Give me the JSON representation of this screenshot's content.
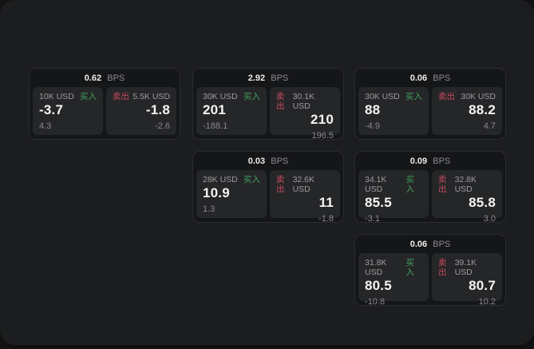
{
  "labels": {
    "buy": "买入",
    "sell": "卖出",
    "bps": "BPS"
  },
  "colors": {
    "buy_green": "#41a35c",
    "sell_red": "#c84b5e"
  },
  "cards": [
    {
      "row": 1,
      "col": 1,
      "bps": "0.62",
      "buy": {
        "amount": "10K USD",
        "value": "-3.7",
        "sub": "4.3"
      },
      "sell": {
        "amount": "5.5K USD",
        "value": "-1.8",
        "sub": "-2.6"
      }
    },
    {
      "row": 1,
      "col": 2,
      "bps": "2.92",
      "buy": {
        "amount": "30K USD",
        "value": "201",
        "sub": "-188.1"
      },
      "sell": {
        "amount": "30.1K USD",
        "value": "210",
        "sub": "196.5"
      }
    },
    {
      "row": 1,
      "col": 3,
      "bps": "0.06",
      "buy": {
        "amount": "30K USD",
        "value": "88",
        "sub": "-4.9"
      },
      "sell": {
        "amount": "30K USD",
        "value": "88.2",
        "sub": "4.7"
      }
    },
    {
      "row": 2,
      "col": 2,
      "bps": "0.03",
      "buy": {
        "amount": "28K USD",
        "value": "10.9",
        "sub": "1.3"
      },
      "sell": {
        "amount": "32.6K USD",
        "value": "11",
        "sub": "-1.8"
      }
    },
    {
      "row": 2,
      "col": 3,
      "bps": "0.09",
      "buy": {
        "amount": "34.1K USD",
        "value": "85.5",
        "sub": "-3.1"
      },
      "sell": {
        "amount": "32.8K USD",
        "value": "85.8",
        "sub": "3.0"
      }
    },
    {
      "row": 3,
      "col": 3,
      "bps": "0.06",
      "buy": {
        "amount": "31.8K USD",
        "value": "80.5",
        "sub": "-10.8"
      },
      "sell": {
        "amount": "39.1K USD",
        "value": "80.7",
        "sub": "10.2"
      }
    }
  ]
}
